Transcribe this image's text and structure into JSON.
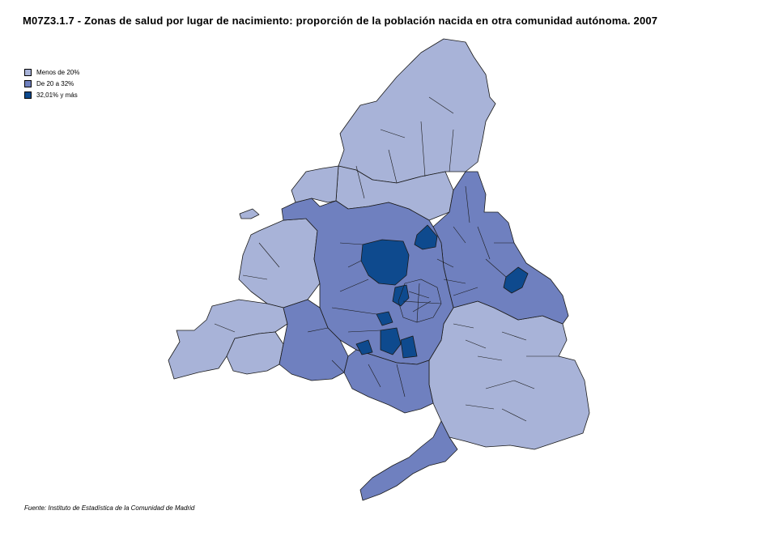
{
  "title": "M07Z3.1.7 - Zonas de salud por lugar de nacimiento: proporción de la población nacida en otra comunidad autónoma. 2007",
  "legend": {
    "items": [
      {
        "label": "Menos de 20%",
        "color": "#a8b3d8"
      },
      {
        "label": "De 20 a 32%",
        "color": "#6f80bf"
      },
      {
        "label": "32,01% y más",
        "color": "#0e4a8e"
      }
    ]
  },
  "map": {
    "region": "Comunidad de Madrid",
    "unit": "Zonas de salud",
    "border_color": "#1a1a1a"
  },
  "source": "Fuente: Instituto de Estadística de la Comunidad de Madrid"
}
